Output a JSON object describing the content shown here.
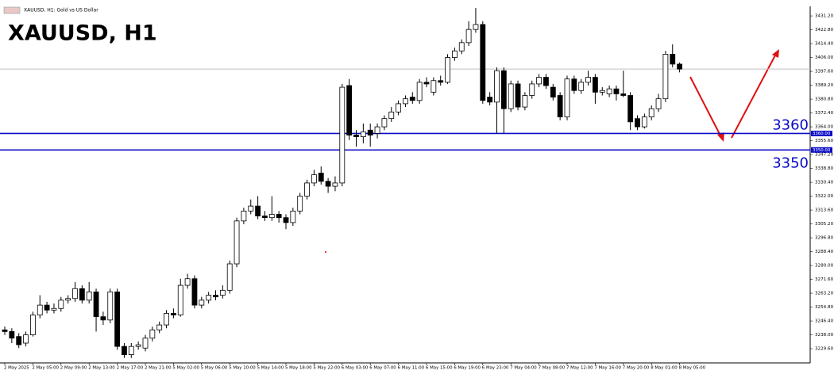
{
  "chart_data": {
    "type": "candlestick",
    "header": "XAUUSD, H1:  Gold vs US Dollar",
    "title": "XAUUSD, H1",
    "ylim": [
      3221,
      3437
    ],
    "yticks": [
      {
        "value": 3431.2,
        "label": "3431.20"
      },
      {
        "value": 3422.8,
        "label": "3422.80"
      },
      {
        "value": 3414.4,
        "label": "3414.40"
      },
      {
        "value": 3406.0,
        "label": "3406.00"
      },
      {
        "value": 3397.6,
        "label": "3397.60"
      },
      {
        "value": 3389.2,
        "label": "3389.20"
      },
      {
        "value": 3380.8,
        "label": "3380.80"
      },
      {
        "value": 3372.4,
        "label": "3372.40"
      },
      {
        "value": 3364.0,
        "label": "3364.00"
      },
      {
        "value": 3355.6,
        "label": "3355.60"
      },
      {
        "value": 3347.2,
        "label": "3347.20"
      },
      {
        "value": 3338.8,
        "label": "3338.80"
      },
      {
        "value": 3330.4,
        "label": "3330.40"
      },
      {
        "value": 3322.0,
        "label": "3322.00"
      },
      {
        "value": 3313.6,
        "label": "3313.60"
      },
      {
        "value": 3305.2,
        "label": "3305.20"
      },
      {
        "value": 3296.8,
        "label": "3296.80"
      },
      {
        "value": 3288.4,
        "label": "3288.40"
      },
      {
        "value": 3280.0,
        "label": "3280.00"
      },
      {
        "value": 3271.6,
        "label": "3271.60"
      },
      {
        "value": 3263.2,
        "label": "3263.20"
      },
      {
        "value": 3254.8,
        "label": "3254.80"
      },
      {
        "value": 3246.4,
        "label": "3246.40"
      },
      {
        "value": 3238.0,
        "label": "3238.00"
      },
      {
        "value": 3229.6,
        "label": "3229.60"
      }
    ],
    "categories": [
      "2 May 2025",
      null,
      null,
      null,
      "2 May 05:00",
      null,
      null,
      null,
      "2 May 09:00",
      null,
      null,
      null,
      "2 May 13:00",
      null,
      null,
      null,
      "2 May 17:00",
      null,
      null,
      null,
      "2 May 21:00",
      null,
      null,
      null,
      "5 May 02:00",
      null,
      null,
      null,
      "5 May 06:00",
      null,
      null,
      null,
      "5 May 10:00",
      null,
      null,
      null,
      "5 May 14:00",
      null,
      null,
      null,
      "5 May 18:00",
      null,
      null,
      null,
      "5 May 22:00",
      null,
      null,
      null,
      "6 May 03:00",
      null,
      null,
      null,
      "6 May 07:00",
      null,
      null,
      null,
      "6 May 11:00",
      null,
      null,
      null,
      "6 May 15:00",
      null,
      null,
      null,
      "6 May 19:00",
      null,
      null,
      null,
      "6 May 23:00",
      null,
      null,
      null,
      "7 May 04:00",
      null,
      null,
      null,
      "7 May 08:00",
      null,
      null,
      null,
      "7 May 12:00",
      null,
      null,
      null,
      "7 May 16:00",
      null,
      null,
      null,
      "7 May 20:00",
      null,
      null,
      null,
      "8 May 01:00",
      null,
      null,
      null,
      "8 May 05:00"
    ],
    "open": [
      3241,
      3240,
      3237,
      3233,
      3238,
      3250,
      3256,
      3253,
      3254,
      3259,
      3260,
      3266,
      3259,
      3264,
      3249,
      3247,
      3264,
      3231,
      3226,
      3231,
      3230,
      3236,
      3241,
      3244,
      3251,
      3250,
      3268,
      3272,
      3256,
      3259,
      3262,
      3262,
      3265,
      3281,
      3307,
      3313,
      3316,
      3310,
      3309,
      3311,
      3309,
      3306,
      3313,
      3322,
      3330,
      3336,
      3331,
      3328,
      3330,
      3389,
      3359,
      3358,
      3362,
      3360,
      3364,
      3369,
      3373,
      3378,
      3382,
      3380,
      3391,
      3385,
      3392,
      3391,
      3406,
      3410,
      3415,
      3423,
      3426,
      3382,
      3379,
      3398,
      3375,
      3390,
      3376,
      3383,
      3390,
      3394,
      3388,
      3383,
      3370,
      3393,
      3386,
      3391,
      3394,
      3385,
      3384,
      3387,
      3384,
      3383,
      3369,
      3364,
      3370,
      3375,
      3381,
      3408,
      3402
    ],
    "high": [
      3243,
      3242,
      3239,
      3240,
      3252,
      3262,
      3258,
      3257,
      3261,
      3262,
      3270,
      3268,
      3270,
      3266,
      3252,
      3266,
      3266,
      3233,
      3233,
      3234,
      3238,
      3243,
      3246,
      3253,
      3254,
      3272,
      3275,
      3274,
      3261,
      3264,
      3265,
      3268,
      3283,
      3309,
      3315,
      3320,
      3322,
      3313,
      3322,
      3313,
      3311,
      3315,
      3324,
      3332,
      3338,
      3340,
      3333,
      3334,
      3390,
      3393,
      3362,
      3366,
      3366,
      3366,
      3371,
      3376,
      3380,
      3383,
      3385,
      3393,
      3394,
      3394,
      3395,
      3408,
      3412,
      3417,
      3428,
      3436,
      3428,
      3385,
      3400,
      3400,
      3392,
      3392,
      3385,
      3392,
      3396,
      3396,
      3390,
      3385,
      3395,
      3395,
      3393,
      3398,
      3396,
      3388,
      3389,
      3389,
      3398,
      3385,
      3371,
      3372,
      3377,
      3384,
      3410,
      3414,
      3403
    ],
    "low": [
      3238,
      3233,
      3230,
      3231,
      3237,
      3248,
      3251,
      3251,
      3252,
      3257,
      3258,
      3257,
      3257,
      3240,
      3244,
      3245,
      3229,
      3224,
      3224,
      3229,
      3228,
      3234,
      3239,
      3242,
      3248,
      3249,
      3266,
      3254,
      3254,
      3257,
      3259,
      3260,
      3263,
      3279,
      3305,
      3311,
      3308,
      3307,
      3307,
      3306,
      3302,
      3304,
      3311,
      3320,
      3328,
      3329,
      3324,
      3325,
      3328,
      3356,
      3352,
      3354,
      3352,
      3357,
      3362,
      3367,
      3371,
      3376,
      3378,
      3378,
      3388,
      3383,
      3389,
      3390,
      3404,
      3408,
      3413,
      3421,
      3378,
      3377,
      3360,
      3360,
      3373,
      3374,
      3374,
      3381,
      3388,
      3387,
      3380,
      3368,
      3368,
      3384,
      3384,
      3389,
      3378,
      3383,
      3382,
      3380,
      3382,
      3362,
      3362,
      3363,
      3368,
      3373,
      3379,
      3400,
      3397
    ],
    "close": [
      3240,
      3236,
      3232,
      3238,
      3250,
      3256,
      3253,
      3254,
      3259,
      3260,
      3266,
      3259,
      3264,
      3249,
      3247,
      3264,
      3231,
      3226,
      3231,
      3232,
      3236,
      3241,
      3244,
      3251,
      3250,
      3268,
      3272,
      3256,
      3259,
      3262,
      3261,
      3265,
      3281,
      3307,
      3313,
      3316,
      3310,
      3309,
      3311,
      3309,
      3306,
      3313,
      3322,
      3330,
      3335,
      3331,
      3328,
      3330,
      3388,
      3359,
      3358,
      3361,
      3359,
      3364,
      3369,
      3373,
      3378,
      3381,
      3380,
      3391,
      3390,
      3392,
      3391,
      3406,
      3410,
      3415,
      3423,
      3426,
      3380,
      3379,
      3398,
      3375,
      3390,
      3376,
      3383,
      3390,
      3394,
      3389,
      3382,
      3370,
      3393,
      3386,
      3391,
      3394,
      3385,
      3386,
      3387,
      3384,
      3383,
      3367,
      3364,
      3370,
      3375,
      3381,
      3408,
      3402,
      3399
    ],
    "levels": [
      {
        "value": 3360,
        "label": "3360",
        "tag": "3360.00"
      },
      {
        "value": 3350,
        "label": "3350",
        "tag": "3350.00"
      }
    ],
    "level_color": "#0b0bc8",
    "price_line": 3399
  }
}
